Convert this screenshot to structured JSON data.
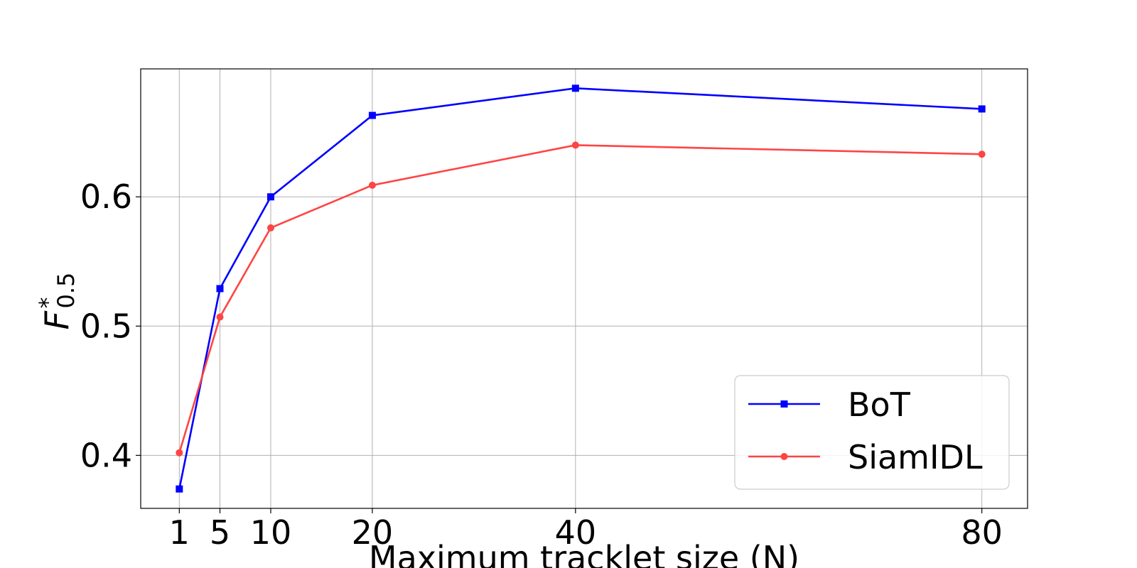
{
  "chart_data": {
    "type": "line",
    "title": "",
    "xlabel": "Maximum tracklet size (N)",
    "ylabel": "F*0.5",
    "ylabel_parts": {
      "base": "F",
      "sup": "*",
      "sub": "0.5"
    },
    "x": [
      1,
      5,
      10,
      20,
      40,
      80
    ],
    "x_ticks": [
      1,
      5,
      10,
      20,
      40,
      80
    ],
    "x_tick_labels": [
      "1",
      "5",
      "10",
      "20",
      "40",
      "80"
    ],
    "y_ticks": [
      0.4,
      0.5,
      0.6
    ],
    "y_tick_labels": [
      "0.4",
      "0.5",
      "0.6"
    ],
    "xlim": [
      -2.8,
      84.5
    ],
    "ylim": [
      0.359,
      0.699
    ],
    "grid": true,
    "legend_position": "lower-right",
    "series": [
      {
        "name": "BoT",
        "color": "#0000ff",
        "marker": "square",
        "values": [
          0.374,
          0.529,
          0.6,
          0.663,
          0.684,
          0.668
        ]
      },
      {
        "name": "SiamIDL",
        "color": "#ff4444",
        "marker": "circle",
        "values": [
          0.402,
          0.507,
          0.576,
          0.609,
          0.64,
          0.633
        ]
      }
    ]
  }
}
